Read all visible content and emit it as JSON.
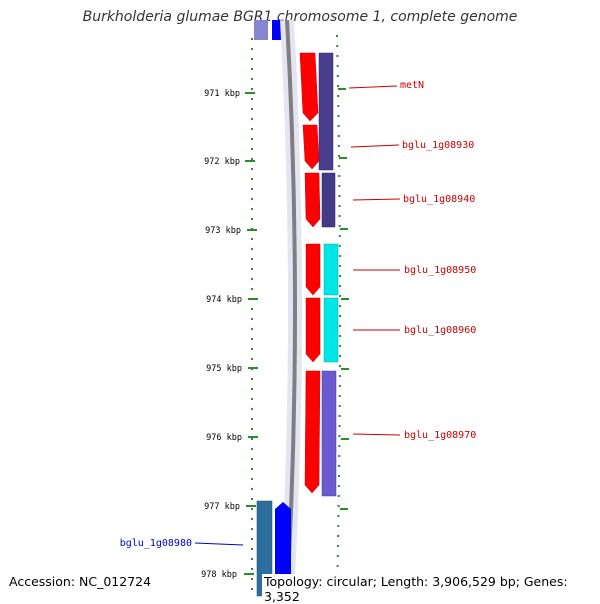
{
  "title": "Burkholderia glumae BGR1 chromosome 1, complete genome",
  "footer": {
    "accession": "Accession: NC_012724",
    "summary": "Topology: circular; Length: 3,906,529 bp; Genes: 3,352"
  },
  "ticks": [
    {
      "label": "971 kbp"
    },
    {
      "label": "972 kbp"
    },
    {
      "label": "973 kbp"
    },
    {
      "label": "974 kbp"
    },
    {
      "label": "975 kbp"
    },
    {
      "label": "976 kbp"
    },
    {
      "label": "977 kbp"
    },
    {
      "label": "978 kbp"
    }
  ],
  "genes": [
    {
      "name": "metN",
      "color": "#cc0000"
    },
    {
      "name": "bglu_1g08930",
      "color": "#cc0000"
    },
    {
      "name": "bglu_1g08940",
      "color": "#cc0000"
    },
    {
      "name": "bglu_1g08950",
      "color": "#cc0000"
    },
    {
      "name": "bglu_1g08960",
      "color": "#cc0000"
    },
    {
      "name": "bglu_1g08970",
      "color": "#cc0000"
    },
    {
      "name": "bglu_1g08980",
      "color": "#0000cc"
    }
  ],
  "colors": {
    "cds": "#ff0000",
    "backbone": "#808080",
    "dots": "#2e8b2e",
    "gc_purple": "#4a3f8f",
    "gc_cyan": "#00e5e5",
    "gc_violet": "#6a5acd",
    "blue_gene": "#0000ff",
    "teal_gene": "#2e6e9e"
  }
}
